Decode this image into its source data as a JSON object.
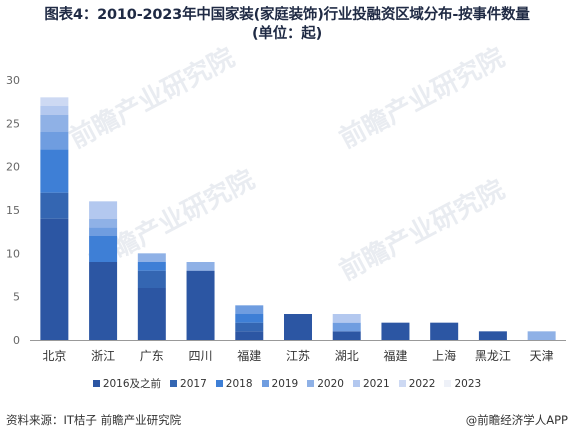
{
  "title_line1": "图表4：2010-2023年中国家装(家庭装饰)行业投融资区域分布-按事件数量",
  "title_line2": "(单位：起)",
  "source": "资料来源：IT桔子 前瞻产业研究院",
  "credit": "@前瞻经济学人APP",
  "watermark": "前瞻产业研究院",
  "chart_data": {
    "type": "bar",
    "stacked": true,
    "categories": [
      "北京",
      "浙江",
      "广东",
      "四川",
      "福建",
      "江苏",
      "湖北",
      "福建",
      "上海",
      "黑龙江",
      "天津"
    ],
    "series": [
      {
        "name": "2016及之前",
        "color": "#2c56a3",
        "values": [
          14,
          9,
          6,
          8,
          1,
          3,
          1,
          2,
          2,
          1,
          0
        ]
      },
      {
        "name": "2017",
        "color": "#3466b2",
        "values": [
          3,
          0,
          2,
          0,
          1,
          0,
          0,
          0,
          0,
          0,
          0
        ]
      },
      {
        "name": "2018",
        "color": "#3e7fd6",
        "values": [
          5,
          3,
          1,
          0,
          1,
          0,
          0,
          0,
          0,
          0,
          0
        ]
      },
      {
        "name": "2019",
        "color": "#6f9de0",
        "values": [
          2,
          1,
          0,
          0,
          1,
          0,
          1,
          0,
          0,
          0,
          0
        ]
      },
      {
        "name": "2020",
        "color": "#8fb1e6",
        "values": [
          2,
          1,
          1,
          1,
          0,
          0,
          0,
          0,
          0,
          0,
          1
        ]
      },
      {
        "name": "2021",
        "color": "#b3c8ef",
        "values": [
          1,
          2,
          0,
          0,
          0,
          0,
          1,
          0,
          0,
          0,
          0
        ]
      },
      {
        "name": "2022",
        "color": "#cdd9f3",
        "values": [
          1,
          0,
          0,
          0,
          0,
          0,
          0,
          0,
          0,
          0,
          0
        ]
      },
      {
        "name": "2023",
        "color": "#eef1f8",
        "values": [
          0,
          0,
          0,
          0,
          0,
          0,
          0,
          0,
          0,
          0,
          0
        ]
      }
    ],
    "ylim": [
      0,
      30
    ],
    "yticks": [
      0,
      5,
      10,
      15,
      20,
      25,
      30
    ],
    "grid": false,
    "legend": "bottom"
  }
}
